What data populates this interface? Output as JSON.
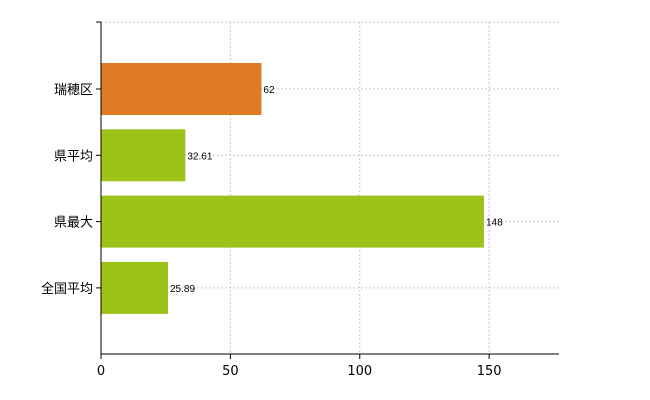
{
  "chart_data": {
    "type": "bar",
    "orientation": "horizontal",
    "categories": [
      "瑞穂区",
      "県平均",
      "県最大",
      "全国平均"
    ],
    "values": [
      62,
      32.61,
      148,
      25.89
    ],
    "value_labels": [
      "62",
      "32.61",
      "148",
      "25.89"
    ],
    "bar_colors": [
      "#e07b24",
      "#9dc31a",
      "#9dc31a",
      "#9dc31a"
    ],
    "xlim": [
      0,
      177
    ],
    "xticks": [
      0,
      50,
      100,
      150
    ],
    "xtick_labels": [
      "0",
      "50",
      "100",
      "150"
    ],
    "grid": true,
    "legend": "none"
  }
}
